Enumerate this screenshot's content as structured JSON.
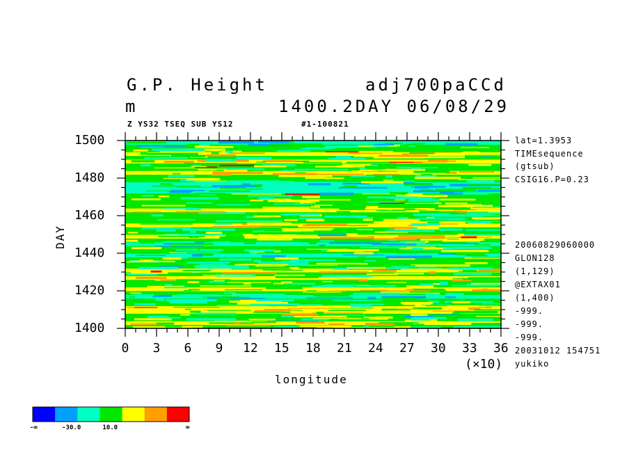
{
  "header": {
    "title_left": "G.P. Height",
    "title_right": "adj700paCCd",
    "unit": "m",
    "time": "1400.2DAY 06/08/29",
    "sub_left": "Z YS32 TSEQ SUB YS12",
    "sub_right": "#1-100821"
  },
  "side_top": [
    "lat=1.3953",
    "TIMEsequence",
    "(gtsub)",
    "CSIG16.P=0.23"
  ],
  "side_bottom": [
    "20060829060000",
    "GLON128",
    "(1,129)",
    "@EXTAX01",
    "(1,400)",
    "-999.",
    "-999.",
    "-999.",
    "20031012 154751",
    "yukiko"
  ],
  "colorbar": {
    "colors": [
      "#0000ff",
      "#00a0ff",
      "#00ffc0",
      "#00e800",
      "#ffff00",
      "#ffa000",
      "#ff0000"
    ],
    "labels": [
      "-∞",
      "-30.0",
      "10.0",
      "∞"
    ]
  },
  "chart_data": {
    "type": "heatmap",
    "xlabel": "longitude",
    "ylabel": "DAY",
    "x_multiplier": "(×10)",
    "xlim": [
      0,
      36
    ],
    "ylim": [
      1400,
      1500
    ],
    "xticks": [
      "0",
      "3",
      "6",
      "9",
      "12",
      "15",
      "18",
      "21",
      "24",
      "27",
      "30",
      "33",
      "36"
    ],
    "yticks": [
      "1400",
      "1420",
      "1440",
      "1460",
      "1480",
      "1500"
    ],
    "palette": [
      "#0000ff",
      "#00a0ff",
      "#00ffc0",
      "#00e800",
      "#ffff00",
      "#ffa000",
      "#ff0000"
    ],
    "bands": [
      {
        "day": 1400,
        "level": 3
      },
      {
        "day": 1402,
        "level": 4
      },
      {
        "day": 1404,
        "level": 3
      },
      {
        "day": 1406,
        "level": 3
      },
      {
        "day": 1408,
        "level": 4
      },
      {
        "day": 1410,
        "level": 4
      },
      {
        "day": 1412,
        "level": 3
      },
      {
        "day": 1414,
        "level": 3
      },
      {
        "day": 1416,
        "level": 2
      },
      {
        "day": 1418,
        "level": 3
      },
      {
        "day": 1420,
        "level": 4
      },
      {
        "day": 1422,
        "level": 3
      },
      {
        "day": 1424,
        "level": 3
      },
      {
        "day": 1426,
        "level": 4
      },
      {
        "day": 1428,
        "level": 3
      },
      {
        "day": 1430,
        "level": 4
      },
      {
        "day": 1432,
        "level": 3
      },
      {
        "day": 1434,
        "level": 3
      },
      {
        "day": 1436,
        "level": 3
      },
      {
        "day": 1438,
        "level": 2
      },
      {
        "day": 1440,
        "level": 3
      },
      {
        "day": 1442,
        "level": 3
      },
      {
        "day": 1444,
        "level": 2
      },
      {
        "day": 1446,
        "level": 3
      },
      {
        "day": 1448,
        "level": 4
      },
      {
        "day": 1450,
        "level": 3
      },
      {
        "day": 1452,
        "level": 3
      },
      {
        "day": 1454,
        "level": 4
      },
      {
        "day": 1456,
        "level": 3
      },
      {
        "day": 1458,
        "level": 3
      },
      {
        "day": 1460,
        "level": 3
      },
      {
        "day": 1462,
        "level": 4
      },
      {
        "day": 1464,
        "level": 3
      },
      {
        "day": 1466,
        "level": 3
      },
      {
        "day": 1468,
        "level": 3
      },
      {
        "day": 1470,
        "level": 3
      },
      {
        "day": 1472,
        "level": 2
      },
      {
        "day": 1474,
        "level": 2
      },
      {
        "day": 1476,
        "level": 2
      },
      {
        "day": 1478,
        "level": 3
      },
      {
        "day": 1480,
        "level": 3
      },
      {
        "day": 1482,
        "level": 4
      },
      {
        "day": 1484,
        "level": 3
      },
      {
        "day": 1486,
        "level": 3
      },
      {
        "day": 1488,
        "level": 4
      },
      {
        "day": 1490,
        "level": 3
      },
      {
        "day": 1492,
        "level": 4
      },
      {
        "day": 1494,
        "level": 3
      },
      {
        "day": 1496,
        "level": 3
      },
      {
        "day": 1498,
        "level": 2
      }
    ]
  }
}
